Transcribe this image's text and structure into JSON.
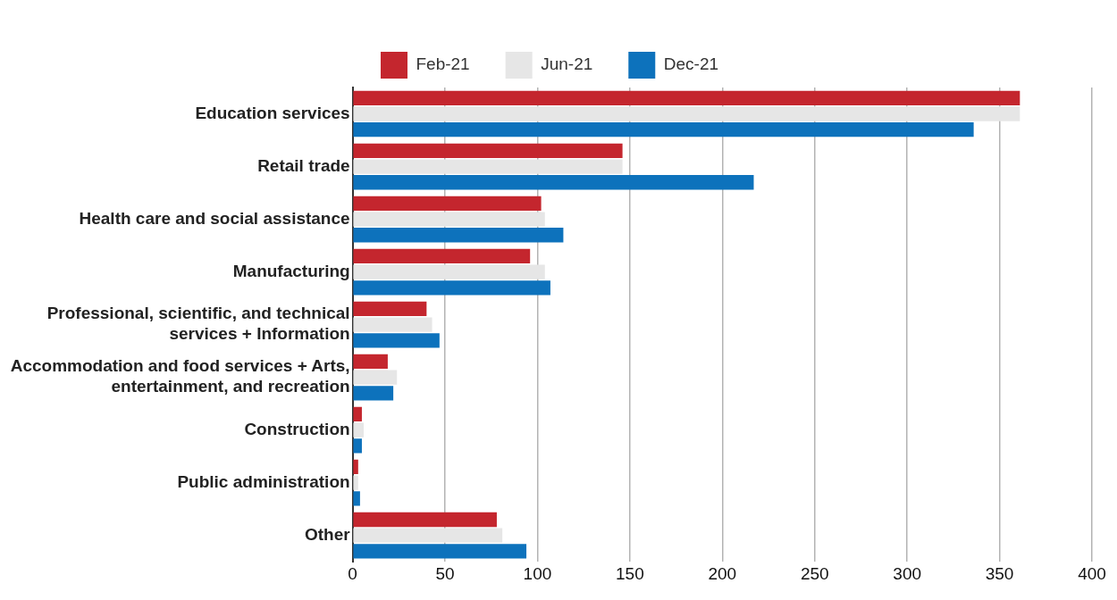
{
  "chart_data": {
    "type": "bar",
    "orientation": "horizontal",
    "categories": [
      "Education services",
      "Retail trade",
      "Health care and social assistance",
      "Manufacturing",
      "Professional, scientific, and technical services + Information",
      "Accommodation and food services + Arts, entertainment, and recreation",
      "Construction",
      "Public administration",
      "Other"
    ],
    "series": [
      {
        "name": "Feb-21",
        "color": "#c4262e",
        "values": [
          361,
          146,
          102,
          96,
          40,
          19,
          5,
          3,
          78
        ]
      },
      {
        "name": "Jun-21",
        "color": "#e6e6e6",
        "values": [
          361,
          146,
          104,
          104,
          43,
          24,
          6,
          3,
          81
        ]
      },
      {
        "name": "Dec-21",
        "color": "#0d72bc",
        "values": [
          336,
          217,
          114,
          107,
          47,
          22,
          5,
          4,
          94
        ]
      }
    ],
    "xlim": [
      0,
      400
    ],
    "xticks": [
      0,
      50,
      100,
      150,
      200,
      250,
      300,
      350,
      400
    ],
    "grid": "x",
    "legend": "top"
  }
}
